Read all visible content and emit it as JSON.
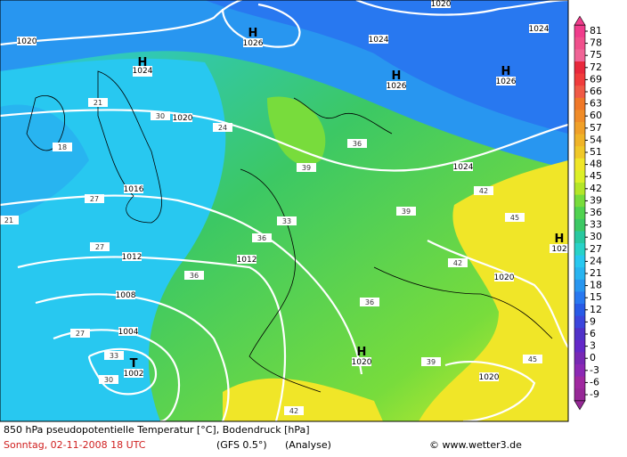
{
  "map": {
    "footer": {
      "line1": "850 hPa pseudopotentielle Temperatur [°C], Bodendruck [hPa]",
      "date": "Sonntag, 02-11-2008  18 UTC",
      "model": "(GFS 0.5°)",
      "run": "(Analyse)",
      "copyright": "© www.wetter3.de"
    },
    "colorbar": {
      "ticks": [
        81,
        78,
        75,
        72,
        69,
        66,
        63,
        60,
        57,
        54,
        51,
        48,
        45,
        42,
        39,
        36,
        33,
        30,
        27,
        24,
        21,
        18,
        15,
        12,
        9,
        6,
        3,
        0,
        -3,
        -6,
        -9
      ],
      "colors": [
        "#f03c8c",
        "#f0508c",
        "#f06496",
        "#e8283c",
        "#f03c3c",
        "#f05a46",
        "#f07828",
        "#f08c28",
        "#f0a028",
        "#f0b428",
        "#f0c828",
        "#f0e628",
        "#dcf028",
        "#b4e628",
        "#78dc3c",
        "#50d250",
        "#3cc864",
        "#28c8a0",
        "#28d2c8",
        "#28c8f0",
        "#28b4f0",
        "#2896f0",
        "#2878f0",
        "#285ae6",
        "#3c46dc",
        "#5032c8",
        "#6428c8",
        "#7828b4",
        "#8c28b4",
        "#a028a0",
        "#962896"
      ]
    },
    "centers": [
      {
        "symbol": "H",
        "pressure": 1026
      },
      {
        "symbol": "H",
        "pressure": 1024
      },
      {
        "symbol": "H",
        "pressure": 1026
      },
      {
        "symbol": "H",
        "pressure": 1026
      },
      {
        "symbol": "H",
        "pressure": 102
      },
      {
        "symbol": "T",
        "pressure": 1002
      },
      {
        "symbol": "H",
        "pressure": 1020
      }
    ],
    "isobar_labels": [
      1020,
      1024,
      1020,
      1016,
      1012,
      1012,
      1008,
      1004,
      1024,
      1024,
      1024,
      1020,
      1020,
      1020
    ],
    "isotherm_labels": [
      21,
      27,
      30,
      33,
      36,
      39,
      36,
      42,
      45,
      39,
      36,
      33,
      27,
      30,
      18,
      24,
      42,
      39,
      36,
      45,
      42,
      21,
      27
    ]
  }
}
